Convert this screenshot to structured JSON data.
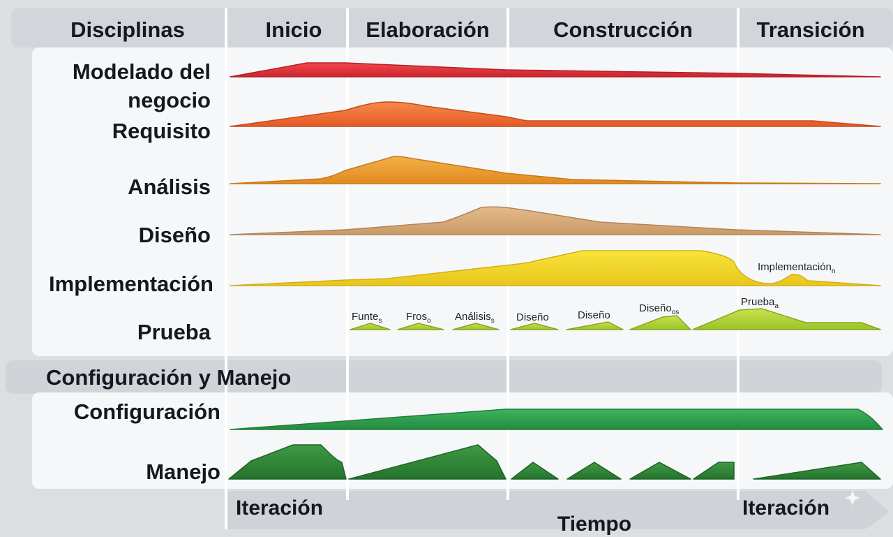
{
  "header": {
    "disciplines": "Disciplinas",
    "phases": [
      {
        "label": "Inicio"
      },
      {
        "label": "Elaboración"
      },
      {
        "label": "Construcción"
      },
      {
        "label": "Transición"
      }
    ]
  },
  "disciplines": [
    {
      "label_lines": [
        "Modelado del",
        "negocio"
      ],
      "color": "#e5383f"
    },
    {
      "label_lines": [
        "Requisito"
      ],
      "color": "#ef6c3a"
    },
    {
      "label_lines": [
        "Análisis"
      ],
      "color": "#ec9a32"
    },
    {
      "label_lines": [
        "Diseño"
      ],
      "color": "#d6a878"
    },
    {
      "label_lines": [
        "Implementación"
      ],
      "color": "#efd72a",
      "annotation": {
        "text": "Implementación",
        "sub": "n"
      }
    },
    {
      "label_lines": [
        "Prueba"
      ],
      "color": "#b7d433"
    }
  ],
  "test_labels": [
    {
      "text": "Funte",
      "sub": "s"
    },
    {
      "text": "Fros",
      "sub": "o"
    },
    {
      "text": "Análisis",
      "sub": "s"
    },
    {
      "text": "Diseño",
      "sub": ""
    },
    {
      "text": "Diseño",
      "sub": ""
    },
    {
      "text": "Diseño",
      "sub": "os"
    },
    {
      "text": "Prueba",
      "sub": "a"
    }
  ],
  "support": {
    "title": "Configuración y Manejo",
    "rows": [
      {
        "label": "Configuración",
        "color": "#2fa34f"
      },
      {
        "label": "Manejo",
        "color": "#2e8b3a"
      }
    ]
  },
  "footer": {
    "iteration_left": "Iteración",
    "iteration_right": "Iteración",
    "time": "Tiempo"
  },
  "colors": {
    "background": "#dcdee2",
    "panel": "#f6f7f8",
    "header_band": "#d2d5da",
    "divider": "#ffffff"
  }
}
